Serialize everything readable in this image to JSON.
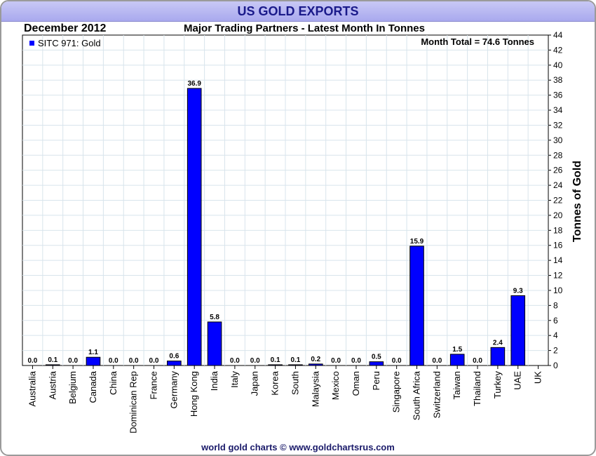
{
  "header": {
    "title": "US GOLD EXPORTS",
    "period": "December 2012",
    "subtitle": "Major Trading Partners - Latest Month In Tonnes"
  },
  "footer": {
    "credit": "world gold charts © www.goldchartsrus.com"
  },
  "colors": {
    "bar": "#0000ff",
    "title_bg": "#b8b8f2",
    "title_text": "#1a1a8a",
    "grid": "#d8e4ec"
  },
  "chart_data": {
    "type": "bar",
    "title": "US GOLD EXPORTS",
    "subtitle": "Major Trading Partners - Latest Month In Tonnes",
    "ylabel": "Tonnes of Gold",
    "ylim": [
      0,
      44
    ],
    "ytick_step": 2,
    "legend": {
      "label": "SITC 971: Gold",
      "position": "top-left"
    },
    "annotation": "Month Total = 74.6 Tonnes",
    "categories": [
      "Australia",
      "Austria",
      "Belgium",
      "Canada",
      "China",
      "Dominican Rep",
      "France",
      "Germany",
      "Hong Kong",
      "India",
      "Italy",
      "Japan",
      "Korea",
      "South",
      "Malaysia",
      "Mexico",
      "Oman",
      "Peru",
      "Singapore",
      "South Africa",
      "Switzerland",
      "Taiwan",
      "Thailand",
      "Turkey",
      "UAE",
      "UK"
    ],
    "values": [
      0.0,
      0.1,
      0.0,
      1.1,
      0.0,
      0.0,
      0.0,
      0.6,
      36.9,
      5.8,
      0.0,
      0.0,
      0.1,
      0.1,
      0.2,
      0.0,
      0.0,
      0.5,
      0.0,
      15.9,
      0.0,
      1.5,
      0.0,
      2.4,
      9.3,
      null
    ],
    "value_labels": [
      "0.0",
      "0.1",
      "0.0",
      "1.1",
      "0.0",
      "0.0",
      "0.0",
      "0.6",
      "36.9",
      "5.8",
      "0.0",
      "0.0",
      "0.1",
      "0.1",
      "0.2",
      "0.0",
      "0.0",
      "0.5",
      "0.0",
      "15.9",
      "0.0",
      "1.5",
      "0.0",
      "2.4",
      "9.3",
      ""
    ]
  }
}
